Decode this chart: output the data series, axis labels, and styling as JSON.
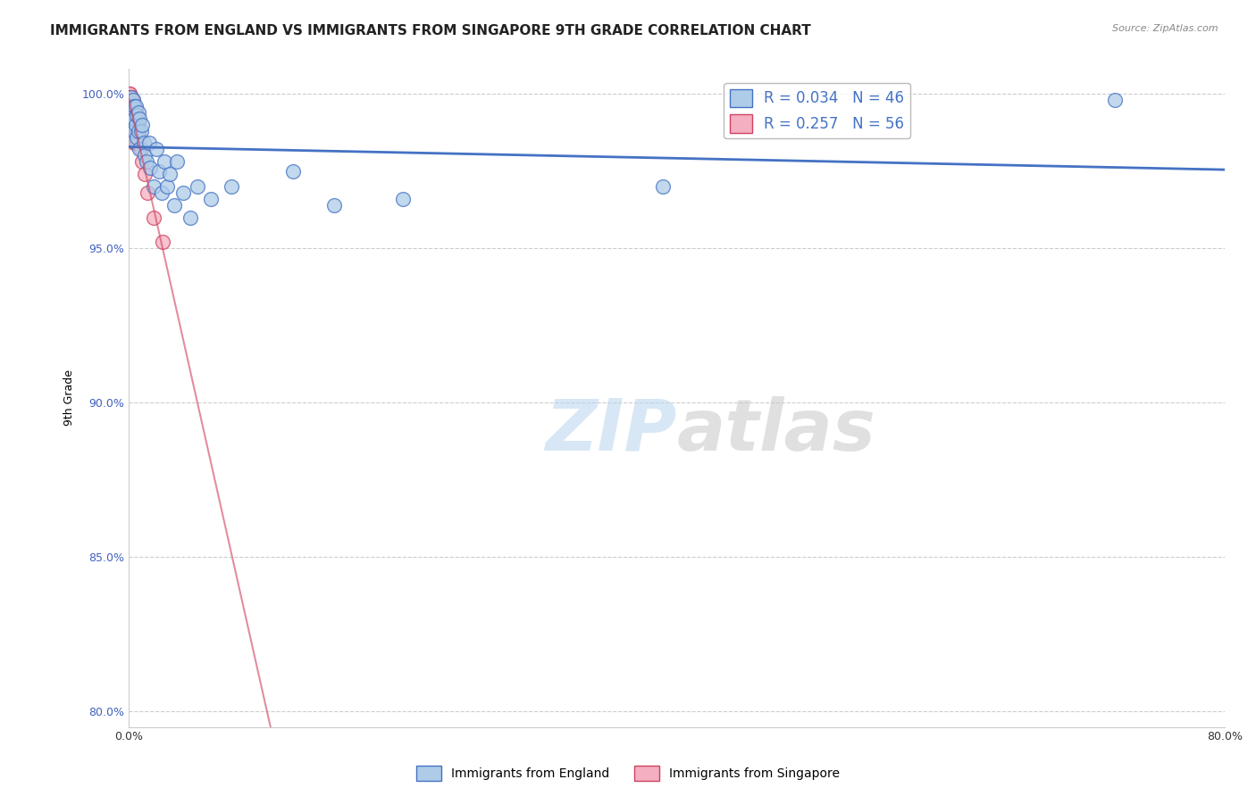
{
  "title": "IMMIGRANTS FROM ENGLAND VS IMMIGRANTS FROM SINGAPORE 9TH GRADE CORRELATION CHART",
  "source": "Source: ZipAtlas.com",
  "ylabel": "9th Grade",
  "xlim": [
    0.0,
    0.8
  ],
  "ylim": [
    0.795,
    1.008
  ],
  "x_ticks": [
    0.0,
    0.1,
    0.2,
    0.3,
    0.4,
    0.5,
    0.6,
    0.7,
    0.8
  ],
  "y_ticks": [
    0.8,
    0.85,
    0.9,
    0.95,
    1.0
  ],
  "y_tick_labels": [
    "80.0%",
    "85.0%",
    "90.0%",
    "95.0%",
    "100.0%"
  ],
  "england_R": 0.034,
  "england_N": 46,
  "singapore_R": 0.257,
  "singapore_N": 56,
  "england_color": "#aecce8",
  "singapore_color": "#f4afc0",
  "regression_color_england": "#4472c4",
  "regression_color_singapore": "#d04060",
  "watermark_zip": "ZIP",
  "watermark_atlas": "atlas",
  "grid_color": "#cccccc",
  "background_color": "#ffffff",
  "title_fontsize": 11,
  "axis_fontsize": 9,
  "legend_fontsize": 12,
  "england_x": [
    0.001,
    0.001,
    0.002,
    0.002,
    0.002,
    0.003,
    0.003,
    0.003,
    0.003,
    0.004,
    0.004,
    0.004,
    0.005,
    0.005,
    0.006,
    0.006,
    0.007,
    0.007,
    0.008,
    0.008,
    0.009,
    0.01,
    0.011,
    0.012,
    0.013,
    0.015,
    0.016,
    0.018,
    0.02,
    0.022,
    0.024,
    0.026,
    0.028,
    0.03,
    0.033,
    0.035,
    0.04,
    0.045,
    0.05,
    0.06,
    0.075,
    0.12,
    0.15,
    0.2,
    0.39,
    0.72
  ],
  "england_y": [
    0.997,
    0.994,
    0.999,
    0.996,
    0.992,
    0.998,
    0.995,
    0.99,
    0.985,
    0.996,
    0.992,
    0.988,
    0.996,
    0.99,
    0.993,
    0.986,
    0.994,
    0.988,
    0.992,
    0.982,
    0.988,
    0.99,
    0.984,
    0.98,
    0.978,
    0.984,
    0.976,
    0.97,
    0.982,
    0.975,
    0.968,
    0.978,
    0.97,
    0.974,
    0.964,
    0.978,
    0.968,
    0.96,
    0.97,
    0.966,
    0.97,
    0.975,
    0.964,
    0.966,
    0.97,
    0.998
  ],
  "singapore_x": [
    0.001,
    0.001,
    0.001,
    0.001,
    0.001,
    0.001,
    0.001,
    0.001,
    0.001,
    0.001,
    0.001,
    0.002,
    0.002,
    0.002,
    0.002,
    0.002,
    0.002,
    0.002,
    0.002,
    0.002,
    0.002,
    0.002,
    0.003,
    0.003,
    0.003,
    0.003,
    0.003,
    0.003,
    0.003,
    0.003,
    0.003,
    0.004,
    0.004,
    0.004,
    0.004,
    0.004,
    0.004,
    0.004,
    0.005,
    0.005,
    0.005,
    0.005,
    0.005,
    0.006,
    0.006,
    0.006,
    0.006,
    0.007,
    0.007,
    0.008,
    0.009,
    0.01,
    0.012,
    0.014,
    0.018,
    0.025
  ],
  "singapore_y": [
    1.0,
    1.0,
    0.999,
    0.999,
    0.998,
    0.998,
    0.997,
    0.997,
    0.996,
    0.996,
    0.995,
    0.999,
    0.998,
    0.997,
    0.996,
    0.995,
    0.994,
    0.993,
    0.992,
    0.991,
    0.99,
    0.988,
    0.998,
    0.997,
    0.996,
    0.994,
    0.993,
    0.991,
    0.99,
    0.988,
    0.986,
    0.996,
    0.994,
    0.992,
    0.99,
    0.988,
    0.986,
    0.984,
    0.995,
    0.993,
    0.99,
    0.987,
    0.984,
    0.993,
    0.99,
    0.987,
    0.984,
    0.991,
    0.987,
    0.985,
    0.982,
    0.978,
    0.974,
    0.968,
    0.96,
    0.952
  ]
}
